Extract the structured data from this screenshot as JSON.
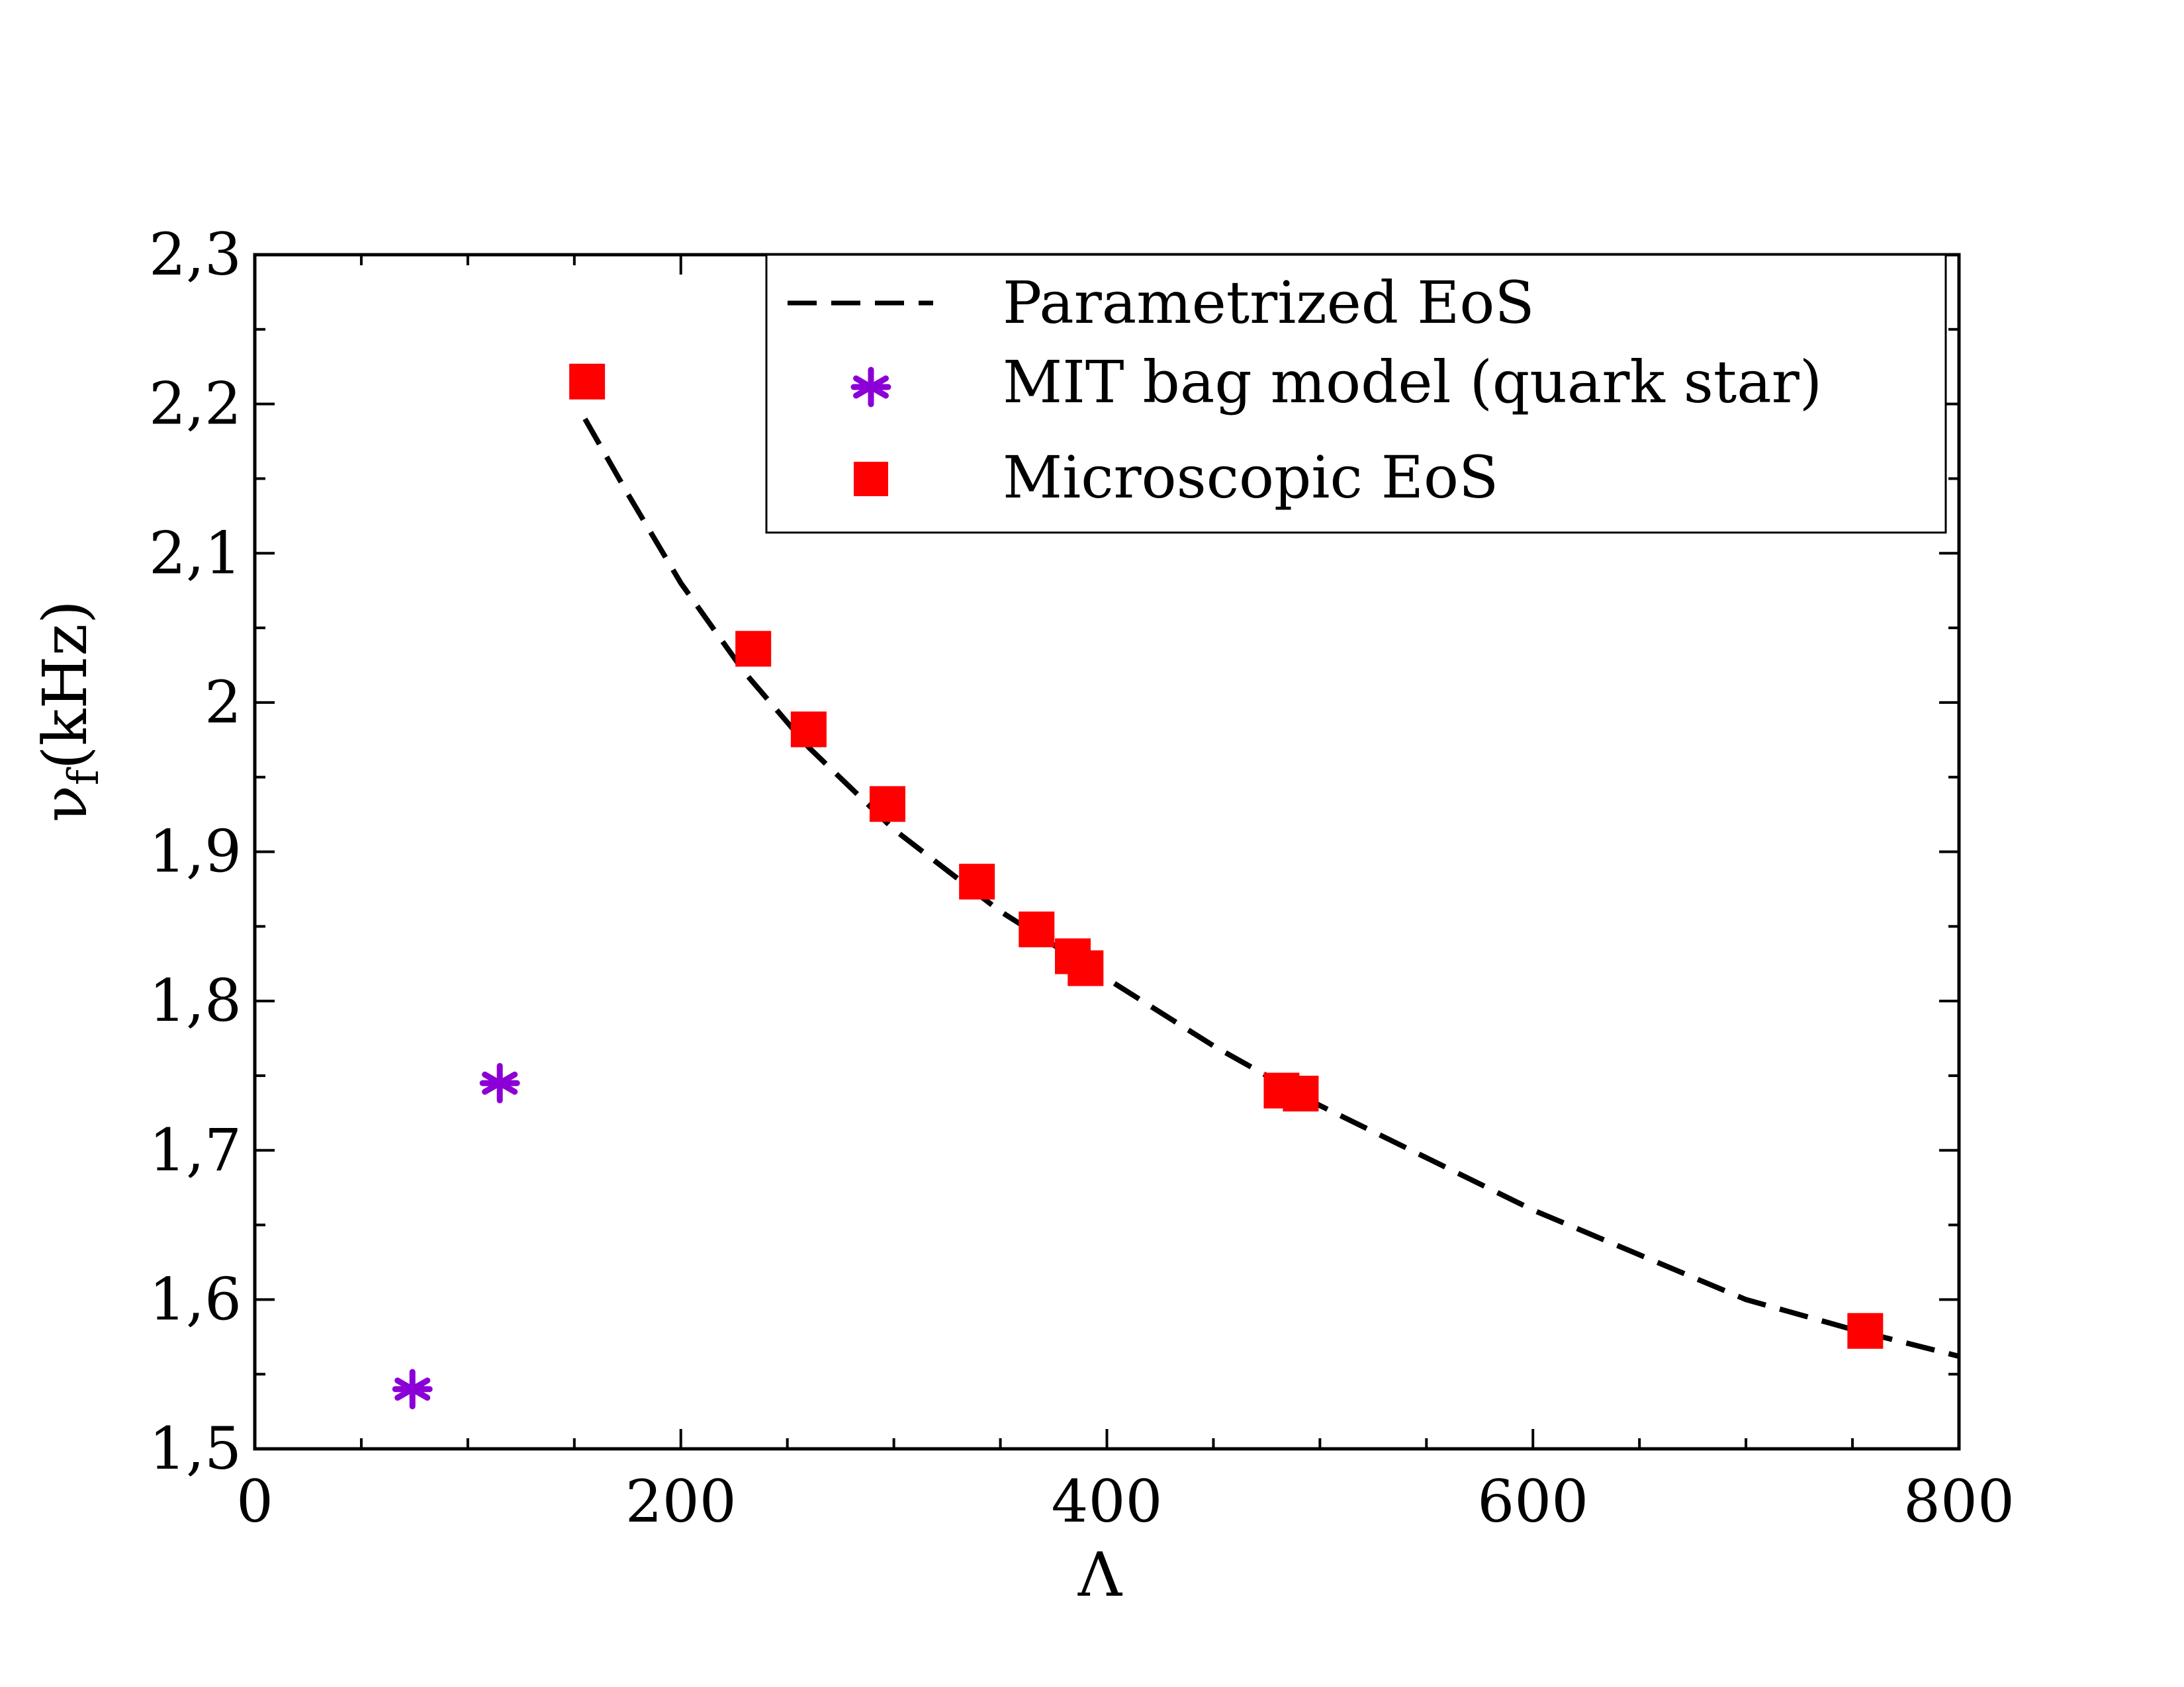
{
  "chart_data": {
    "type": "scatter",
    "title": "",
    "xlabel": "Λ",
    "ylabel": "ν",
    "ylabel_sub": "f",
    "ylabel_unit": "(kHz)",
    "xlim": [
      0,
      800
    ],
    "ylim": [
      1.5,
      2.3
    ],
    "x_ticks": [
      0,
      200,
      400,
      600,
      800
    ],
    "x_tick_labels": [
      "0",
      "200",
      "400",
      "600",
      "800"
    ],
    "y_ticks": [
      1.5,
      1.6,
      1.7,
      1.8,
      1.9,
      2.0,
      2.1,
      2.2,
      2.3
    ],
    "y_tick_labels": [
      "1,5",
      "1,6",
      "1,7",
      "1,8",
      "1,9",
      "2",
      "2,1",
      "2,2",
      "2,3"
    ],
    "grid": false,
    "legend_position": "top-right",
    "series": [
      {
        "name": "Parametrized EoS",
        "style": "dashed-line",
        "color": "#000000",
        "x": [
          155,
          175,
          200,
          230,
          260,
          300,
          350,
          400,
          450,
          500,
          550,
          600,
          650,
          700,
          750,
          800
        ],
        "y": [
          2.19,
          2.14,
          2.08,
          2.02,
          1.97,
          1.915,
          1.86,
          1.815,
          1.77,
          1.73,
          1.695,
          1.66,
          1.63,
          1.6,
          1.58,
          1.562
        ]
      },
      {
        "name": "MIT bag model (quark star)",
        "style": "asterisk",
        "color": "#8b00d6",
        "x": [
          74,
          115
        ],
        "y": [
          1.54,
          1.745
        ]
      },
      {
        "name": "Microscopic EoS",
        "style": "square",
        "color": "#ff0000",
        "x": [
          156,
          234,
          260,
          297,
          339,
          367,
          384,
          390,
          482,
          491,
          756
        ],
        "y": [
          2.215,
          2.036,
          1.982,
          1.932,
          1.88,
          1.848,
          1.83,
          1.822,
          1.74,
          1.738,
          1.579
        ]
      }
    ]
  }
}
